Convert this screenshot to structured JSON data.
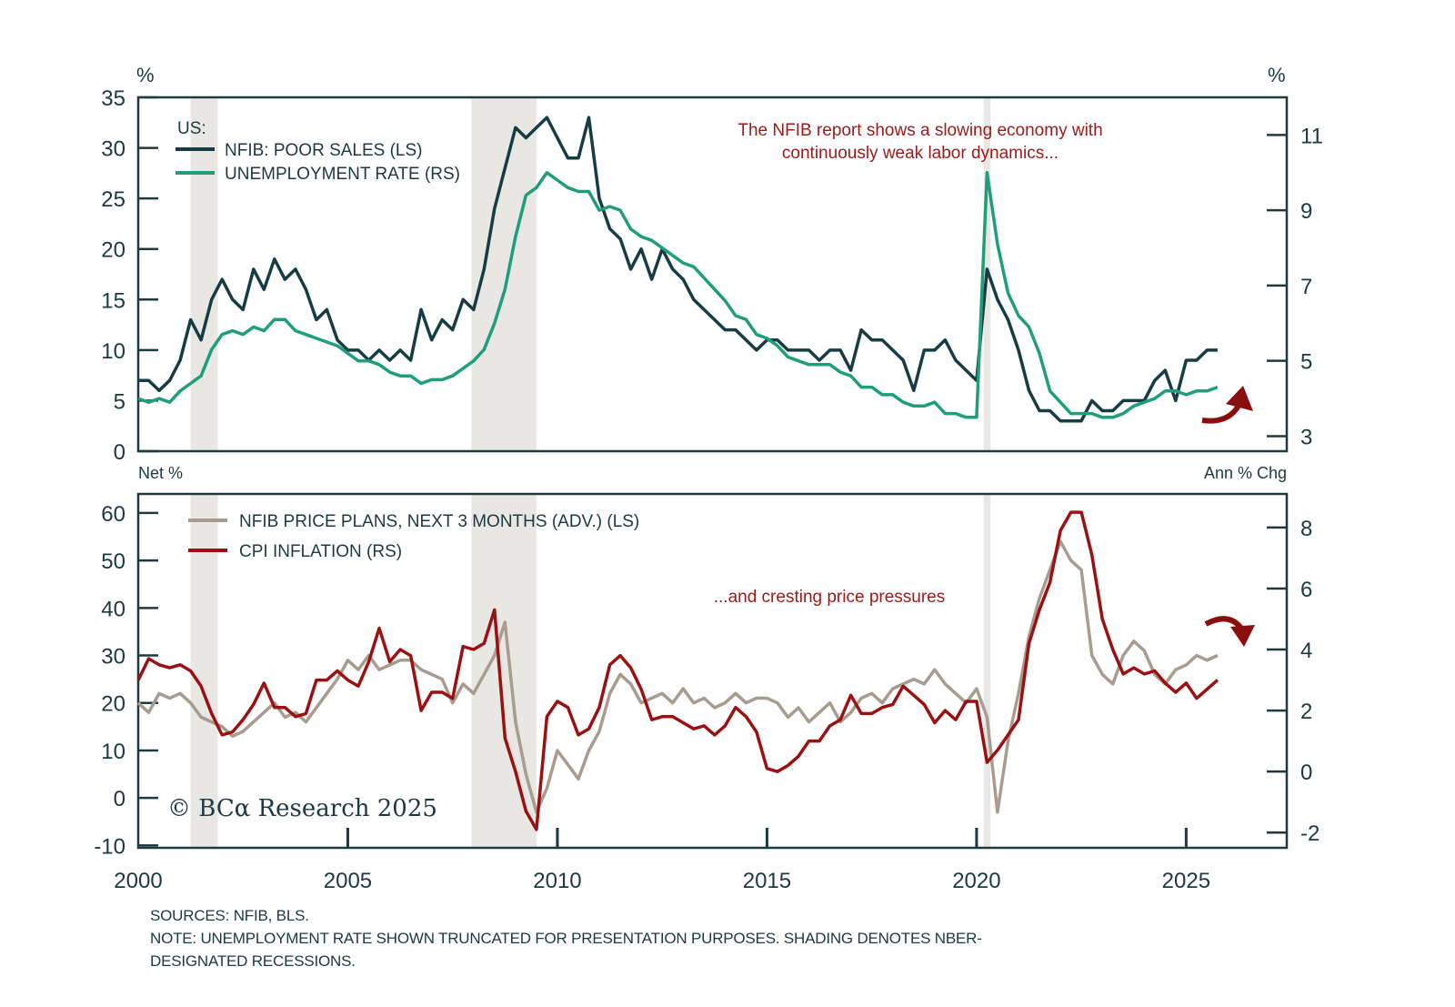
{
  "chart_data": [
    {
      "type": "line",
      "panel": "top",
      "left_axis_unit": "%",
      "right_axis_unit": "%",
      "left_axis_label": "Net %",
      "right_axis_label": "Ann % Chg",
      "legend_title": "US:",
      "left_ylim": [
        0,
        35
      ],
      "left_yticks": [
        0,
        5,
        10,
        15,
        20,
        25,
        30,
        35
      ],
      "right_ylim": [
        2.6,
        12
      ],
      "right_yticks": [
        3,
        5,
        7,
        9,
        11
      ],
      "xlim": [
        2000,
        2027.4
      ],
      "annotation": [
        "The NFIB report shows a slowing economy with",
        "continuously weak labor dynamics..."
      ],
      "arrow_direction": "up",
      "series": [
        {
          "name": "NFIB: POOR SALES (LS)",
          "axis": "left",
          "color": "#163c44",
          "x": [
            2000.0,
            2000.25,
            2000.5,
            2000.75,
            2001.0,
            2001.25,
            2001.5,
            2001.75,
            2002.0,
            2002.25,
            2002.5,
            2002.75,
            2003.0,
            2003.25,
            2003.5,
            2003.75,
            2004.0,
            2004.25,
            2004.5,
            2004.75,
            2005.0,
            2005.25,
            2005.5,
            2005.75,
            2006.0,
            2006.25,
            2006.5,
            2006.75,
            2007.0,
            2007.25,
            2007.5,
            2007.75,
            2008.0,
            2008.25,
            2008.5,
            2008.75,
            2009.0,
            2009.25,
            2009.5,
            2009.75,
            2010.0,
            2010.25,
            2010.5,
            2010.75,
            2011.0,
            2011.25,
            2011.5,
            2011.75,
            2012.0,
            2012.25,
            2012.5,
            2012.75,
            2013.0,
            2013.25,
            2013.5,
            2013.75,
            2014.0,
            2014.25,
            2014.5,
            2014.75,
            2015.0,
            2015.25,
            2015.5,
            2015.75,
            2016.0,
            2016.25,
            2016.5,
            2016.75,
            2017.0,
            2017.25,
            2017.5,
            2017.75,
            2018.0,
            2018.25,
            2018.5,
            2018.75,
            2019.0,
            2019.25,
            2019.5,
            2019.75,
            2020.0,
            2020.25,
            2020.5,
            2020.75,
            2021.0,
            2021.25,
            2021.5,
            2021.75,
            2022.0,
            2022.25,
            2022.5,
            2022.75,
            2023.0,
            2023.25,
            2023.5,
            2023.75,
            2024.0,
            2024.25,
            2024.5,
            2024.75,
            2025.0,
            2025.25,
            2025.5,
            2025.75
          ],
          "y": [
            7,
            7,
            6,
            7,
            9,
            13,
            11,
            15,
            17,
            15,
            14,
            18,
            16,
            19,
            17,
            18,
            16,
            13,
            14,
            11,
            10,
            10,
            9,
            10,
            9,
            10,
            9,
            14,
            11,
            13,
            12,
            15,
            14,
            18,
            24,
            28,
            32,
            31,
            32,
            33,
            31,
            29,
            29,
            33,
            25,
            22,
            21,
            18,
            20,
            17,
            20,
            18,
            17,
            15,
            14,
            13,
            12,
            12,
            11,
            10,
            11,
            11,
            10,
            10,
            10,
            9,
            10,
            10,
            8,
            12,
            11,
            11,
            10,
            9,
            6,
            10,
            10,
            11,
            9,
            8,
            7,
            18,
            15,
            13,
            10,
            6,
            4,
            4,
            3,
            3,
            3,
            5,
            4,
            4,
            5,
            5,
            5,
            7,
            8,
            5,
            9,
            9,
            10,
            10
          ]
        },
        {
          "name": "UNEMPLOYMENT RATE (RS)",
          "axis": "right",
          "color": "#1e9e7a",
          "x": [
            2000.0,
            2000.25,
            2000.5,
            2000.75,
            2001.0,
            2001.25,
            2001.5,
            2001.75,
            2002.0,
            2002.25,
            2002.5,
            2002.75,
            2003.0,
            2003.25,
            2003.5,
            2003.75,
            2004.0,
            2004.25,
            2004.5,
            2004.75,
            2005.0,
            2005.25,
            2005.5,
            2005.75,
            2006.0,
            2006.25,
            2006.5,
            2006.75,
            2007.0,
            2007.25,
            2007.5,
            2007.75,
            2008.0,
            2008.25,
            2008.5,
            2008.75,
            2009.0,
            2009.25,
            2009.5,
            2009.75,
            2010.0,
            2010.25,
            2010.5,
            2010.75,
            2011.0,
            2011.25,
            2011.5,
            2011.75,
            2012.0,
            2012.25,
            2012.5,
            2012.75,
            2013.0,
            2013.25,
            2013.5,
            2013.75,
            2014.0,
            2014.25,
            2014.5,
            2014.75,
            2015.0,
            2015.25,
            2015.5,
            2015.75,
            2016.0,
            2016.25,
            2016.5,
            2016.75,
            2017.0,
            2017.25,
            2017.5,
            2017.75,
            2018.0,
            2018.25,
            2018.5,
            2018.75,
            2019.0,
            2019.25,
            2019.5,
            2019.75,
            2020.0,
            2020.25,
            2020.5,
            2020.75,
            2021.0,
            2021.25,
            2021.5,
            2021.75,
            2022.0,
            2022.25,
            2022.5,
            2022.75,
            2023.0,
            2023.25,
            2023.5,
            2023.75,
            2024.0,
            2024.25,
            2024.5,
            2024.75,
            2025.0,
            2025.25,
            2025.5,
            2025.75
          ],
          "y": [
            4.0,
            3.9,
            4.0,
            3.9,
            4.2,
            4.4,
            4.6,
            5.3,
            5.7,
            5.8,
            5.7,
            5.9,
            5.8,
            6.1,
            6.1,
            5.8,
            5.7,
            5.6,
            5.5,
            5.4,
            5.2,
            5.0,
            5.0,
            4.9,
            4.7,
            4.6,
            4.6,
            4.4,
            4.5,
            4.5,
            4.6,
            4.8,
            5.0,
            5.3,
            6.0,
            6.9,
            8.3,
            9.4,
            9.6,
            10.0,
            9.8,
            9.6,
            9.5,
            9.5,
            9.0,
            9.1,
            9.0,
            8.5,
            8.3,
            8.2,
            8.0,
            7.8,
            7.6,
            7.5,
            7.2,
            6.9,
            6.6,
            6.2,
            6.1,
            5.7,
            5.6,
            5.4,
            5.1,
            5.0,
            4.9,
            4.9,
            4.9,
            4.7,
            4.6,
            4.3,
            4.3,
            4.1,
            4.1,
            3.9,
            3.8,
            3.8,
            3.9,
            3.6,
            3.6,
            3.5,
            3.5,
            10.0,
            8.1,
            6.8,
            6.2,
            5.9,
            5.2,
            4.2,
            3.9,
            3.6,
            3.6,
            3.6,
            3.5,
            3.5,
            3.6,
            3.8,
            3.9,
            4.0,
            4.2,
            4.2,
            4.1,
            4.2,
            4.2,
            4.3
          ]
        }
      ],
      "recessions": [
        [
          2001.25,
          2001.9
        ],
        [
          2007.95,
          2009.5
        ],
        [
          2020.17,
          2020.33
        ]
      ]
    },
    {
      "type": "line",
      "panel": "bottom",
      "left_ylim": [
        -10.5,
        64
      ],
      "left_yticks": [
        -10,
        0,
        10,
        20,
        30,
        40,
        50,
        60
      ],
      "right_ylim": [
        -2.5,
        9.1
      ],
      "right_yticks": [
        -2,
        0,
        2,
        4,
        6,
        8
      ],
      "xlim": [
        2000,
        2027.4
      ],
      "xticks": [
        2000,
        2005,
        2010,
        2015,
        2020,
        2025
      ],
      "annotation": "...and cresting price pressures",
      "arrow_direction": "down",
      "series": [
        {
          "name": "NFIB PRICE PLANS, NEXT 3 MONTHS (ADV.) (LS)",
          "axis": "left",
          "color": "#a89c8f",
          "x": [
            2000.0,
            2000.25,
            2000.5,
            2000.75,
            2001.0,
            2001.25,
            2001.5,
            2001.75,
            2002.0,
            2002.25,
            2002.5,
            2002.75,
            2003.0,
            2003.25,
            2003.5,
            2003.75,
            2004.0,
            2004.25,
            2004.5,
            2004.75,
            2005.0,
            2005.25,
            2005.5,
            2005.75,
            2006.0,
            2006.25,
            2006.5,
            2006.75,
            2007.0,
            2007.25,
            2007.5,
            2007.75,
            2008.0,
            2008.25,
            2008.5,
            2008.75,
            2009.0,
            2009.25,
            2009.5,
            2009.75,
            2010.0,
            2010.25,
            2010.5,
            2010.75,
            2011.0,
            2011.25,
            2011.5,
            2011.75,
            2012.0,
            2012.25,
            2012.5,
            2012.75,
            2013.0,
            2013.25,
            2013.5,
            2013.75,
            2014.0,
            2014.25,
            2014.5,
            2014.75,
            2015.0,
            2015.25,
            2015.5,
            2015.75,
            2016.0,
            2016.25,
            2016.5,
            2016.75,
            2017.0,
            2017.25,
            2017.5,
            2017.75,
            2018.0,
            2018.25,
            2018.5,
            2018.75,
            2019.0,
            2019.25,
            2019.5,
            2019.75,
            2020.0,
            2020.25,
            2020.5,
            2020.75,
            2021.0,
            2021.25,
            2021.5,
            2021.75,
            2022.0,
            2022.25,
            2022.5,
            2022.75,
            2023.0,
            2023.25,
            2023.5,
            2023.75,
            2024.0,
            2024.25,
            2024.5,
            2024.75,
            2025.0,
            2025.25,
            2025.5,
            2025.75
          ],
          "y": [
            20,
            18,
            22,
            21,
            22,
            20,
            17,
            16,
            15,
            13,
            14,
            16,
            18,
            20,
            17,
            18,
            16,
            19,
            22,
            25,
            29,
            27,
            30,
            27,
            28,
            29,
            29,
            27,
            26,
            25,
            20,
            24,
            22,
            26,
            30,
            37,
            16,
            5,
            -3,
            2,
            10,
            7,
            4,
            10,
            14,
            22,
            26,
            24,
            20,
            21,
            22,
            20,
            23,
            20,
            21,
            19,
            20,
            22,
            20,
            21,
            21,
            20,
            17,
            19,
            16,
            18,
            20,
            16,
            18,
            21,
            22,
            20,
            23,
            24,
            25,
            24,
            27,
            24,
            22,
            20,
            23,
            17,
            -3,
            12,
            22,
            34,
            42,
            48,
            54,
            50,
            48,
            30,
            26,
            24,
            30,
            33,
            31,
            26,
            24,
            27,
            28,
            30,
            29,
            30
          ]
        },
        {
          "name": "CPI INFLATION (RS)",
          "axis": "right",
          "color": "#9b1111",
          "x": [
            2000.0,
            2000.25,
            2000.5,
            2000.75,
            2001.0,
            2001.25,
            2001.5,
            2001.75,
            2002.0,
            2002.25,
            2002.5,
            2002.75,
            2003.0,
            2003.25,
            2003.5,
            2003.75,
            2004.0,
            2004.25,
            2004.5,
            2004.75,
            2005.0,
            2005.25,
            2005.5,
            2005.75,
            2006.0,
            2006.25,
            2006.5,
            2006.75,
            2007.0,
            2007.25,
            2007.5,
            2007.75,
            2008.0,
            2008.25,
            2008.5,
            2008.75,
            2009.0,
            2009.25,
            2009.5,
            2009.75,
            2010.0,
            2010.25,
            2010.5,
            2010.75,
            2011.0,
            2011.25,
            2011.5,
            2011.75,
            2012.0,
            2012.25,
            2012.5,
            2012.75,
            2013.0,
            2013.25,
            2013.5,
            2013.75,
            2014.0,
            2014.25,
            2014.5,
            2014.75,
            2015.0,
            2015.25,
            2015.5,
            2015.75,
            2016.0,
            2016.25,
            2016.5,
            2016.75,
            2017.0,
            2017.25,
            2017.5,
            2017.75,
            2018.0,
            2018.25,
            2018.5,
            2018.75,
            2019.0,
            2019.25,
            2019.5,
            2019.75,
            2020.0,
            2020.25,
            2020.5,
            2020.75,
            2021.0,
            2021.25,
            2021.5,
            2021.75,
            2022.0,
            2022.25,
            2022.5,
            2022.75,
            2023.0,
            2023.25,
            2023.5,
            2023.75,
            2024.0,
            2024.25,
            2024.5,
            2024.75,
            2025.0,
            2025.25,
            2025.5,
            2025.75
          ],
          "y": [
            3.0,
            3.7,
            3.5,
            3.4,
            3.5,
            3.3,
            2.8,
            1.9,
            1.2,
            1.3,
            1.7,
            2.2,
            2.9,
            2.1,
            2.1,
            1.8,
            1.9,
            3.0,
            3.0,
            3.3,
            3.0,
            2.8,
            3.6,
            4.7,
            3.6,
            4.0,
            3.8,
            2.0,
            2.6,
            2.6,
            2.4,
            4.1,
            4.0,
            4.2,
            5.3,
            1.1,
            0.0,
            -1.3,
            -1.9,
            1.8,
            2.3,
            2.1,
            1.2,
            1.4,
            2.1,
            3.5,
            3.8,
            3.4,
            2.7,
            1.7,
            1.8,
            1.8,
            1.6,
            1.4,
            1.5,
            1.2,
            1.5,
            2.1,
            1.8,
            1.3,
            0.1,
            0.0,
            0.2,
            0.5,
            1.0,
            1.0,
            1.5,
            1.7,
            2.5,
            1.9,
            1.9,
            2.1,
            2.2,
            2.8,
            2.5,
            2.2,
            1.6,
            2.0,
            1.7,
            2.3,
            2.3,
            0.3,
            0.7,
            1.2,
            1.7,
            4.2,
            5.3,
            6.2,
            7.9,
            8.5,
            8.5,
            7.1,
            5.0,
            4.0,
            3.2,
            3.4,
            3.2,
            3.3,
            2.9,
            2.6,
            2.9,
            2.4,
            2.7,
            3.0
          ]
        }
      ],
      "recessions": [
        [
          2001.25,
          2001.9
        ],
        [
          2007.95,
          2009.5
        ],
        [
          2020.17,
          2020.33
        ]
      ]
    }
  ],
  "copyright": "© BCα Research 2025",
  "footer": {
    "sources": "SOURCES: NFIB, BLS.",
    "note_line1": "NOTE: UNEMPLOYMENT RATE SHOWN TRUNCATED FOR PRESENTATION PURPOSES. SHADING DENOTES NBER-",
    "note_line2": "DESIGNATED RECESSIONS."
  },
  "colors": {
    "axis": "#1c3a40",
    "recession_shade": "#e8e7e3",
    "annotation": "#9b1b1b",
    "arrow": "#8b0e0e"
  }
}
